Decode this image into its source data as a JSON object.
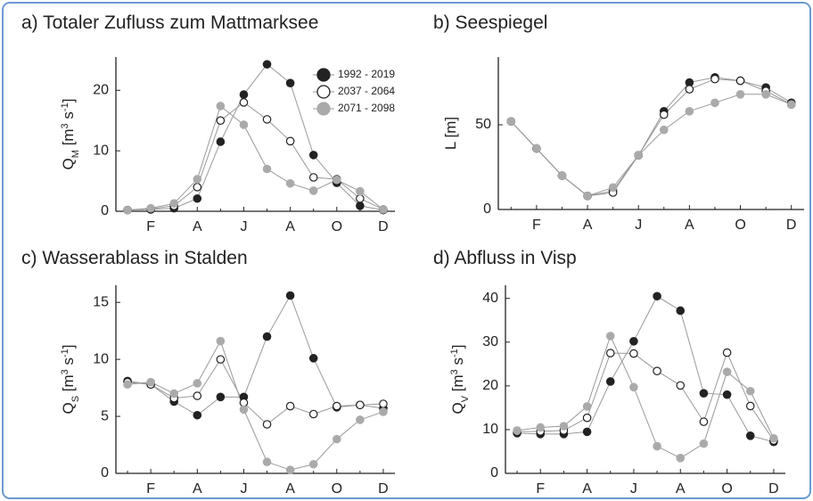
{
  "chart_data": [
    {
      "type": "line",
      "title": "a) Totaler Zufluss zum Mattmarksee",
      "y_label_parts": [
        "Q",
        "M",
        " [m",
        "3",
        " s",
        "-1",
        "]"
      ],
      "categories": [
        null,
        "F",
        null,
        "A",
        null,
        "J",
        null,
        "A",
        null,
        "O",
        null,
        "D"
      ],
      "series": [
        {
          "name": "1992 - 2019",
          "color": "#222222",
          "marker_fill": "#222222",
          "values": [
            0.2,
            0.3,
            0.5,
            2.1,
            11.5,
            19.3,
            24.3,
            21.2,
            9.3,
            4.7,
            0.9,
            0.2
          ]
        },
        {
          "name": "2037 - 2064",
          "color": "#222222",
          "marker_fill": "#ffffff",
          "values": [
            0.2,
            0.4,
            0.9,
            4.0,
            15.0,
            18.0,
            15.2,
            11.6,
            5.6,
            5.3,
            2.1,
            0.3
          ]
        },
        {
          "name": "2071 - 2098",
          "color": "#aaaaaa",
          "marker_fill": "#aaaaaa",
          "values": [
            0.2,
            0.5,
            1.3,
            5.3,
            17.4,
            14.3,
            7.0,
            4.6,
            3.4,
            5.2,
            3.3,
            0.3
          ]
        }
      ],
      "ylim": [
        0,
        25.5
      ],
      "yticks": [
        0,
        10,
        20
      ],
      "legend": "upper right"
    },
    {
      "type": "line",
      "title": "b) Seespiegel",
      "y_label_parts": [
        "L [m]"
      ],
      "categories": [
        null,
        "F",
        null,
        "A",
        null,
        "J",
        null,
        "A",
        null,
        "O",
        null,
        "D"
      ],
      "series": [
        {
          "name": "1992 - 2019",
          "color": "#222222",
          "marker_fill": "#222222",
          "values": [
            52,
            36,
            20,
            8,
            11,
            32,
            58,
            75,
            78,
            76,
            72,
            63
          ]
        },
        {
          "name": "2037 - 2064",
          "color": "#222222",
          "marker_fill": "#ffffff",
          "values": [
            52,
            36,
            20,
            8,
            10,
            32,
            56,
            71,
            77,
            76,
            70,
            62
          ]
        },
        {
          "name": "2071 - 2098",
          "color": "#aaaaaa",
          "marker_fill": "#aaaaaa",
          "values": [
            52,
            36,
            20,
            8,
            13,
            32,
            47,
            58,
            63,
            68,
            68,
            62
          ]
        }
      ],
      "ylim": [
        0,
        90
      ],
      "yticks": [
        0,
        50
      ]
    },
    {
      "type": "line",
      "title": "c) Wasserablass in Stalden",
      "y_label_parts": [
        "Q",
        "S",
        " [m",
        "3",
        " s",
        "-1",
        "]"
      ],
      "categories": [
        null,
        "F",
        null,
        "A",
        null,
        "J",
        null,
        "A",
        null,
        "O",
        null,
        "D"
      ],
      "series": [
        {
          "name": "1992 - 2019",
          "color": "#222222",
          "marker_fill": "#222222",
          "values": [
            8.1,
            7.8,
            6.3,
            5.1,
            6.7,
            6.7,
            12.0,
            15.6,
            10.1,
            5.8,
            6.0,
            5.7
          ]
        },
        {
          "name": "2037 - 2064",
          "color": "#222222",
          "marker_fill": "#ffffff",
          "values": [
            8.0,
            7.8,
            6.6,
            6.8,
            10.0,
            6.2,
            4.3,
            5.9,
            5.2,
            5.9,
            6.0,
            6.1
          ]
        },
        {
          "name": "2071 - 2098",
          "color": "#aaaaaa",
          "marker_fill": "#aaaaaa",
          "values": [
            7.8,
            8.0,
            7.0,
            7.9,
            11.6,
            5.6,
            1.0,
            0.3,
            0.8,
            3.0,
            4.7,
            5.4
          ]
        }
      ],
      "ylim": [
        0,
        16.5
      ],
      "yticks": [
        0,
        5,
        10,
        15
      ]
    },
    {
      "type": "line",
      "title": "d) Abfluss in Visp",
      "y_label_parts": [
        "Q",
        "V",
        " [m",
        "3",
        " s",
        "-1",
        "]"
      ],
      "categories": [
        null,
        "F",
        null,
        "A",
        null,
        "J",
        null,
        "A",
        null,
        "O",
        null,
        "D"
      ],
      "series": [
        {
          "name": "1992 - 2019",
          "color": "#222222",
          "marker_fill": "#222222",
          "values": [
            9.2,
            9.0,
            9.0,
            9.5,
            21.0,
            30.2,
            40.5,
            37.2,
            18.3,
            18.0,
            8.6,
            7.2
          ]
        },
        {
          "name": "2037 - 2064",
          "color": "#222222",
          "marker_fill": "#ffffff",
          "values": [
            9.5,
            9.6,
            9.8,
            12.7,
            27.5,
            27.4,
            23.4,
            20.1,
            11.8,
            27.6,
            15.4,
            7.5
          ]
        },
        {
          "name": "2071 - 2098",
          "color": "#aaaaaa",
          "marker_fill": "#aaaaaa",
          "values": [
            9.8,
            10.5,
            10.8,
            15.3,
            31.4,
            19.7,
            6.2,
            3.5,
            6.8,
            23.2,
            18.8,
            8.0
          ]
        }
      ],
      "ylim": [
        0,
        43
      ],
      "yticks": [
        0,
        10,
        20,
        30,
        40
      ]
    }
  ]
}
